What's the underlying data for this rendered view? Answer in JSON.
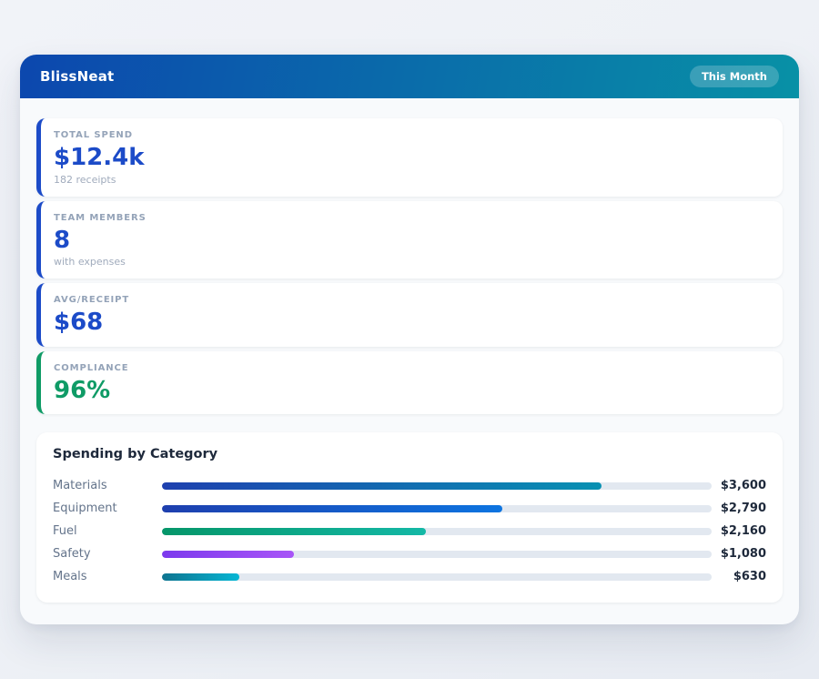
{
  "header": {
    "title": "BlissNeat",
    "badge": "This Month",
    "gradient_from": "#0c47ae",
    "gradient_to": "#0891a6"
  },
  "stats": [
    {
      "label": "TOTAL SPEND",
      "value": "$12.4k",
      "subtitle": "182 receipts",
      "accent": "#1c4bc8"
    },
    {
      "label": "TEAM MEMBERS",
      "value": "8",
      "subtitle": "with expenses",
      "accent": "#1c4bc8"
    },
    {
      "label": "AVG/RECEIPT",
      "value": "$68",
      "subtitle": "",
      "accent": "#1c4bc8"
    },
    {
      "label": "COMPLIANCE",
      "value": "96%",
      "subtitle": "",
      "accent": "#0f9b66"
    }
  ],
  "chart_data": {
    "type": "bar",
    "orientation": "horizontal",
    "title": "Spending by Category",
    "categories": [
      "Materials",
      "Equipment",
      "Fuel",
      "Safety",
      "Meals"
    ],
    "values": [
      3600,
      2790,
      2160,
      1080,
      630
    ],
    "value_labels": [
      "$3,600",
      "$2,790",
      "$2,160",
      "$1,080",
      "$630"
    ],
    "xlim": [
      0,
      4500
    ],
    "track_color": "#e2e8f0",
    "bar_gradients": [
      [
        "#1e40af",
        "#0891b2"
      ],
      [
        "#1e3fae",
        "#0d74e0"
      ],
      [
        "#059669",
        "#14b8a6"
      ],
      [
        "#7c3aed",
        "#a855f7"
      ],
      [
        "#0e7490",
        "#06b6d4"
      ]
    ]
  }
}
